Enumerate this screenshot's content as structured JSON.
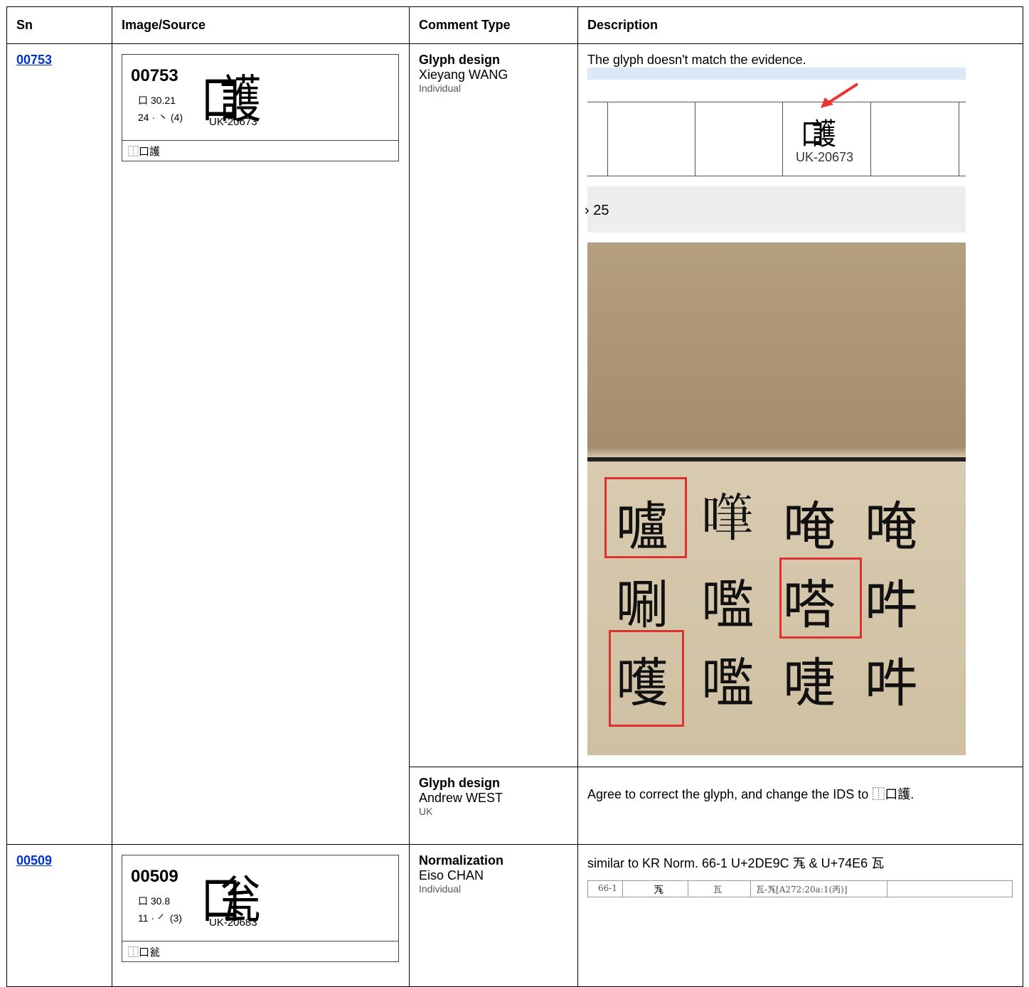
{
  "header": {
    "sn": "Sn",
    "image": "Image/Source",
    "comment_type": "Comment Type",
    "description": "Description"
  },
  "rows": [
    {
      "sn": "00753",
      "card": {
        "id": "00753",
        "radical": "口 30.21",
        "strokes": "24 · ㇔ (4)",
        "glyph": "口護",
        "source": "UK-20673",
        "ids": "⿰口護"
      },
      "comments": [
        {
          "type": "Glyph design",
          "author": "Xieyang WANG",
          "affiliation": "Individual",
          "description": "The glyph doesn't match the evidence.",
          "evidence": {
            "glyph": "口護",
            "source": "UK-20673",
            "partial": "› 25",
            "photo_chars": [
              "嚧",
              "𠽩",
              "唵",
              "唵",
              "唰",
              "嚂",
              "嗒",
              "吽",
              "嚄",
              "嚂",
              "啑",
              "吽"
            ]
          }
        },
        {
          "type": "Glyph design",
          "author": "Andrew WEST",
          "affiliation": "UK",
          "description": "Agree to correct the glyph, and change the IDS to ⿰口護."
        }
      ]
    },
    {
      "sn": "00509",
      "card": {
        "id": "00509",
        "radical": "口 30.8",
        "strokes": "11 · ㇒ (3)",
        "glyph": "口瓮",
        "source": "UK-20683",
        "ids": "⿰口瓮"
      },
      "comments": [
        {
          "type": "Normalization",
          "author": "Eiso CHAN",
          "affiliation": "Individual",
          "description": "similar to KR Norm. 66-1 U+2DE9C 𭺜 & U+74E6 瓦",
          "evidence": {
            "cells": [
              "66-1",
              "𭺜",
              "瓦",
              "瓦-𭺜[A272:20a:1(丙)]"
            ]
          }
        }
      ]
    }
  ]
}
